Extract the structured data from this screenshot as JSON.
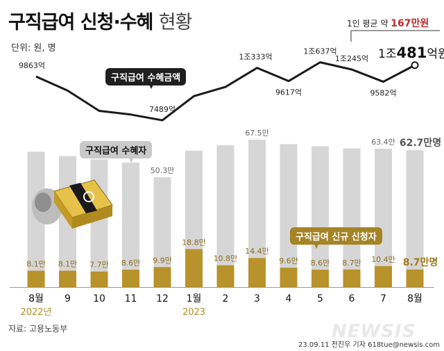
{
  "header": {
    "title": "구직급여 신청·수혜",
    "title_sub": "현황",
    "unit": "단위: 원, 명"
  },
  "callouts": {
    "avg_label": "1인 평균 약 ",
    "avg_value": "167만원",
    "latest_amount_prefix": "1조",
    "latest_amount_bold": "481",
    "latest_amount_suffix": "억원"
  },
  "legend_pills": {
    "amount": "구직급여 수혜금액",
    "recipients": "구직급여 수혜자",
    "new_applicants": "구직급여 신규 신청자"
  },
  "footer": {
    "source": "자료: 고용노동부",
    "credit": "23.09.11 전진우 기자 618tue@newsis.com",
    "watermark": "NEWSIS"
  },
  "colors": {
    "recipient_bar": "#d6d6d6",
    "applicant_bar": "#b8922a",
    "line": "#1a1a1a",
    "year_label": "#b58b22"
  },
  "chart_data": {
    "type": "bar",
    "categories": [
      "8월",
      "9",
      "10",
      "11",
      "12",
      "1월",
      "2",
      "3",
      "4",
      "5",
      "6",
      "7",
      "8월"
    ],
    "year_labels": [
      {
        "index": 0,
        "label": "2022년"
      },
      {
        "index": 5,
        "label": "2023"
      }
    ],
    "series": [
      {
        "name": "구직급여 수혜금액",
        "kind": "line",
        "unit": "억원",
        "values": [
          9863,
          9100,
          8000,
          7800,
          7489,
          8800,
          9300,
          10333,
          9617,
          10637,
          10245,
          9582,
          10481
        ],
        "labels": [
          "9863억",
          "",
          "",
          "",
          "7489억",
          "",
          "",
          "1조333억",
          "9617억",
          "1조637억",
          "1조245억",
          "9582억",
          ""
        ]
      },
      {
        "name": "구직급여 수혜자",
        "kind": "bar",
        "unit": "만명",
        "values": [
          62.0,
          60.0,
          58.5,
          57.0,
          50.3,
          62.5,
          65.0,
          67.5,
          65.5,
          64.5,
          63.5,
          63.4,
          62.7
        ],
        "labels": [
          "",
          "",
          "",
          "",
          "50.3만",
          "",
          "",
          "67.5만",
          "",
          "",
          "",
          "63.4만",
          "62.7만명"
        ]
      },
      {
        "name": "구직급여 신규 신청자",
        "kind": "bar",
        "unit": "만명",
        "values": [
          8.1,
          8.1,
          7.7,
          8.6,
          9.9,
          18.8,
          10.8,
          14.4,
          9.6,
          8.6,
          8.7,
          10.4,
          8.7
        ],
        "labels": [
          "8.1만",
          "8.1만",
          "7.7만",
          "8.6만",
          "9.9만",
          "18.8만",
          "10.8만",
          "14.4만",
          "9.6만",
          "8.6만",
          "8.7만",
          "10.4만",
          "8.7만명"
        ]
      }
    ]
  }
}
